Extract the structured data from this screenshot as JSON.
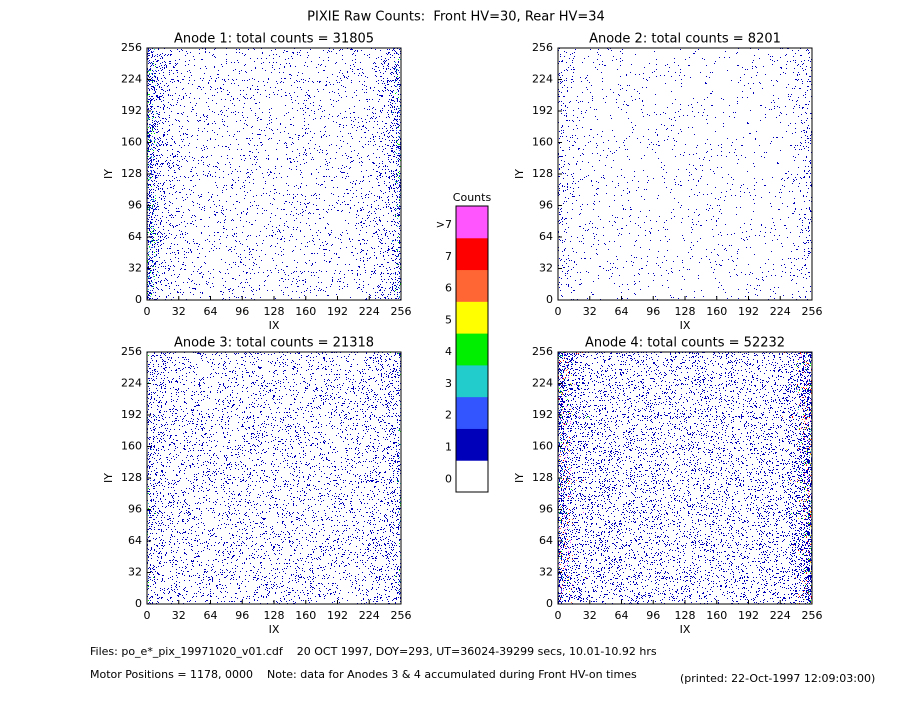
{
  "title": "PIXIE Raw Counts:  Front HV=30, Rear HV=34",
  "chart_data": [
    {
      "type": "heatmap",
      "title": "Anode 1: total counts = 31805",
      "xlabel": "IX",
      "ylabel": "IY",
      "xlim": [
        0,
        256
      ],
      "ylim": [
        0,
        256
      ],
      "xticks": [
        0,
        32,
        64,
        96,
        128,
        160,
        192,
        224,
        256
      ],
      "yticks": [
        0,
        32,
        64,
        96,
        128,
        160,
        192,
        224,
        256
      ]
    },
    {
      "type": "heatmap",
      "title": "Anode 2: total counts = 8201",
      "xlabel": "IX",
      "ylabel": "IY",
      "xlim": [
        0,
        256
      ],
      "ylim": [
        0,
        256
      ],
      "xticks": [
        0,
        32,
        64,
        96,
        128,
        160,
        192,
        224,
        256
      ],
      "yticks": [
        0,
        32,
        64,
        96,
        128,
        160,
        192,
        224,
        256
      ]
    },
    {
      "type": "heatmap",
      "title": "Anode 3: total counts = 21318",
      "xlabel": "IX",
      "ylabel": "IY",
      "xlim": [
        0,
        256
      ],
      "ylim": [
        0,
        256
      ],
      "xticks": [
        0,
        32,
        64,
        96,
        128,
        160,
        192,
        224,
        256
      ],
      "yticks": [
        0,
        32,
        64,
        96,
        128,
        160,
        192,
        224,
        256
      ]
    },
    {
      "type": "heatmap",
      "title": "Anode 4: total counts = 52232",
      "xlabel": "IX",
      "ylabel": "IY",
      "xlim": [
        0,
        256
      ],
      "ylim": [
        0,
        256
      ],
      "xticks": [
        0,
        32,
        64,
        96,
        128,
        160,
        192,
        224,
        256
      ],
      "yticks": [
        0,
        32,
        64,
        96,
        128,
        160,
        192,
        224,
        256
      ]
    }
  ],
  "colorbar": {
    "title": "Counts",
    "labels": [
      "0",
      "1",
      "2",
      "3",
      "4",
      "5",
      "6",
      "7",
      ">7"
    ],
    "colors": [
      "#ffffff",
      "#0000bb",
      "#3355ff",
      "#22cccc",
      "#00ee00",
      "#ffff00",
      "#ff6633",
      "#ff0000",
      "#ff55ff"
    ]
  },
  "footer": {
    "files": "Files: po_e*_pix_19971020_v01.cdf    20 OCT 1997, DOY=293, UT=36024-39299 secs, 10.01-10.92 hrs",
    "motor": "Motor Positions = 1178, 0000    Note: data for Anodes 3 & 4 accumulated during Front HV-on times",
    "printed": "(printed: 22-Oct-1997 12:09:03:00)"
  }
}
